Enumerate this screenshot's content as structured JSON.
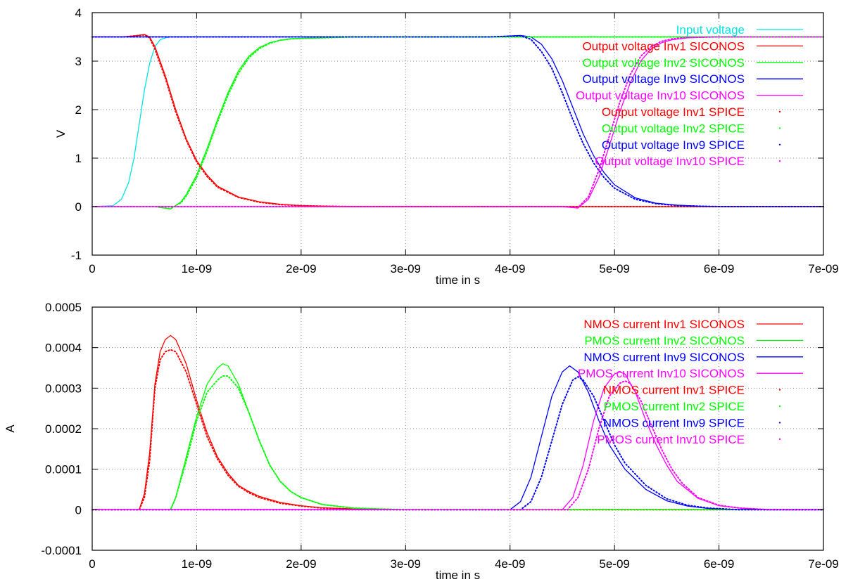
{
  "chart_data": [
    {
      "type": "line",
      "xlabel": "time in s",
      "ylabel": "V",
      "xlim": [
        0,
        7e-09
      ],
      "ylim": [
        -1,
        4
      ],
      "x_ticks": [
        "0",
        "1e-09",
        "2e-09",
        "3e-09",
        "4e-09",
        "5e-09",
        "6e-09",
        "7e-09"
      ],
      "y_ticks": [
        "-1",
        "0",
        "1",
        "2",
        "3",
        "4"
      ],
      "grid": true,
      "legend_position": "top-right",
      "series": [
        {
          "name": "Input voltage",
          "color": "#00e5e5",
          "style": "line",
          "x": [
            0,
            2e-10,
            2.8e-10,
            3.5e-10,
            4e-10,
            4.5e-10,
            5e-10,
            5.5e-10,
            6e-10,
            6.5e-10,
            7e-10,
            7.5e-10,
            8e-10,
            7e-09
          ],
          "y": [
            0,
            0.02,
            0.15,
            0.5,
            1.0,
            1.7,
            2.4,
            2.95,
            3.3,
            3.44,
            3.48,
            3.5,
            3.5,
            3.5
          ]
        },
        {
          "name": "Output voltage Inv1 SICONOS",
          "color": "#ff0000",
          "style": "line",
          "x": [
            0,
            3e-10,
            4e-10,
            5e-10,
            5.5e-10,
            6e-10,
            7e-10,
            8e-10,
            9e-10,
            1e-09,
            1.1e-09,
            1.2e-09,
            1.4e-09,
            1.6e-09,
            1.8e-09,
            2e-09,
            2.2e-09,
            2.5e-09,
            3e-09,
            7e-09
          ],
          "y": [
            3.5,
            3.5,
            3.52,
            3.55,
            3.5,
            3.3,
            2.7,
            2.0,
            1.4,
            0.95,
            0.65,
            0.42,
            0.2,
            0.1,
            0.05,
            0.02,
            0.01,
            0,
            0,
            0
          ]
        },
        {
          "name": "Output voltage Inv2 SICONOS",
          "color": "#00ff00",
          "style": "line",
          "x": [
            0,
            6e-10,
            7.5e-10,
            8.5e-10,
            9e-10,
            1e-09,
            1.1e-09,
            1.2e-09,
            1.3e-09,
            1.4e-09,
            1.5e-09,
            1.6e-09,
            1.7e-09,
            1.8e-09,
            1.9e-09,
            2e-09,
            2.2e-09,
            2.5e-09,
            7e-09
          ],
          "y": [
            0,
            0,
            -0.05,
            0.1,
            0.25,
            0.65,
            1.2,
            1.8,
            2.35,
            2.8,
            3.1,
            3.28,
            3.38,
            3.43,
            3.46,
            3.47,
            3.48,
            3.5,
            3.5
          ]
        },
        {
          "name": "Output voltage Inv9 SICONOS",
          "color": "#0000ff",
          "style": "line",
          "x": [
            0,
            3.8e-09,
            4.1e-09,
            4.2e-09,
            4.3e-09,
            4.4e-09,
            4.5e-09,
            4.6e-09,
            4.7e-09,
            4.8e-09,
            4.9e-09,
            5e-09,
            5.2e-09,
            5.4e-09,
            5.6e-09,
            5.8e-09,
            6e-09,
            6.5e-09,
            7e-09
          ],
          "y": [
            3.5,
            3.5,
            3.53,
            3.5,
            3.35,
            3.05,
            2.6,
            2.05,
            1.5,
            1.05,
            0.7,
            0.45,
            0.18,
            0.07,
            0.03,
            0.01,
            0,
            0,
            0
          ]
        },
        {
          "name": "Output voltage Inv10 SICONOS",
          "color": "#ff00ff",
          "style": "line",
          "x": [
            0,
            4.5e-09,
            4.65e-09,
            4.75e-09,
            4.85e-09,
            4.95e-09,
            5.05e-09,
            5.15e-09,
            5.25e-09,
            5.35e-09,
            5.45e-09,
            5.55e-09,
            5.7e-09,
            6e-09,
            7e-09
          ],
          "y": [
            0,
            0,
            -0.03,
            0.15,
            0.6,
            1.25,
            1.95,
            2.55,
            3.0,
            3.25,
            3.38,
            3.44,
            3.48,
            3.5,
            3.5
          ]
        },
        {
          "name": "Output voltage Inv1 SPICE",
          "color": "#ff0000",
          "style": "dots",
          "x": [
            0,
            3e-10,
            4e-10,
            5e-10,
            5.5e-10,
            6e-10,
            7e-10,
            8e-10,
            9e-10,
            1e-09,
            1.1e-09,
            1.2e-09,
            1.4e-09,
            1.6e-09,
            1.8e-09,
            2e-09,
            2.2e-09,
            2.5e-09,
            3e-09,
            7e-09
          ],
          "y": [
            3.5,
            3.5,
            3.52,
            3.54,
            3.48,
            3.25,
            2.65,
            1.95,
            1.37,
            0.92,
            0.62,
            0.4,
            0.19,
            0.09,
            0.04,
            0.02,
            0.01,
            0,
            0,
            0
          ]
        },
        {
          "name": "Output voltage Inv2 SPICE",
          "color": "#00ff00",
          "style": "dots",
          "x": [
            0,
            6e-10,
            7.5e-10,
            8.5e-10,
            9e-10,
            1e-09,
            1.1e-09,
            1.2e-09,
            1.3e-09,
            1.4e-09,
            1.5e-09,
            1.6e-09,
            1.7e-09,
            1.8e-09,
            1.9e-09,
            2e-09,
            2.2e-09,
            2.5e-09,
            7e-09
          ],
          "y": [
            0,
            0,
            -0.04,
            0.08,
            0.22,
            0.6,
            1.15,
            1.75,
            2.3,
            2.75,
            3.07,
            3.26,
            3.37,
            3.43,
            3.46,
            3.47,
            3.48,
            3.5,
            3.5
          ]
        },
        {
          "name": "Output voltage Inv9 SPICE",
          "color": "#0000ff",
          "style": "dots",
          "x": [
            0,
            3.8e-09,
            4.1e-09,
            4.2e-09,
            4.3e-09,
            4.4e-09,
            4.5e-09,
            4.6e-09,
            4.7e-09,
            4.8e-09,
            4.9e-09,
            5e-09,
            5.2e-09,
            5.4e-09,
            5.6e-09,
            5.8e-09,
            6e-09,
            6.5e-09,
            7e-09
          ],
          "y": [
            3.5,
            3.5,
            3.52,
            3.45,
            3.2,
            2.85,
            2.35,
            1.8,
            1.3,
            0.9,
            0.6,
            0.38,
            0.15,
            0.06,
            0.02,
            0.01,
            0,
            0,
            0
          ]
        },
        {
          "name": "Output voltage Inv10 SPICE",
          "color": "#ff00ff",
          "style": "dots",
          "x": [
            0,
            4.5e-09,
            4.65e-09,
            4.75e-09,
            4.85e-09,
            4.95e-09,
            5.05e-09,
            5.15e-09,
            5.25e-09,
            5.35e-09,
            5.45e-09,
            5.55e-09,
            5.7e-09,
            6e-09,
            7e-09
          ],
          "y": [
            0,
            0,
            -0.02,
            0.2,
            0.75,
            1.45,
            2.15,
            2.72,
            3.1,
            3.3,
            3.41,
            3.46,
            3.49,
            3.5,
            3.5
          ]
        }
      ]
    },
    {
      "type": "line",
      "xlabel": "time in s",
      "ylabel": "A",
      "xlim": [
        0,
        7e-09
      ],
      "ylim": [
        -0.0001,
        0.0005
      ],
      "x_ticks": [
        "0",
        "1e-09",
        "2e-09",
        "3e-09",
        "4e-09",
        "5e-09",
        "6e-09",
        "7e-09"
      ],
      "y_ticks": [
        "-0.0001",
        "0",
        "0.0001",
        "0.0002",
        "0.0003",
        "0.0004",
        "0.0005"
      ],
      "grid": true,
      "legend_position": "top-right",
      "series": [
        {
          "name": "NMOS current Inv1 SICONOS",
          "color": "#ff0000",
          "style": "line",
          "x": [
            0,
            4.5e-10,
            5e-10,
            5.5e-10,
            6e-10,
            6.5e-10,
            7e-10,
            7.5e-10,
            8e-10,
            9e-10,
            1e-09,
            1.1e-09,
            1.2e-09,
            1.3e-09,
            1.4e-09,
            1.5e-09,
            1.6e-09,
            1.8e-09,
            2e-09,
            2.2e-09,
            2.5e-09,
            3e-09,
            7e-09
          ],
          "y": [
            0,
            0,
            4e-05,
            0.00014,
            0.00031,
            0.00039,
            0.00042,
            0.00043,
            0.00042,
            0.00036,
            0.00027,
            0.00019,
            0.00013,
            9e-05,
            6e-05,
            4.5e-05,
            3.3e-05,
            1.8e-05,
            1e-05,
            5e-06,
            2e-06,
            0,
            0
          ]
        },
        {
          "name": "PMOS current Inv2 SICONOS",
          "color": "#00ff00",
          "style": "line",
          "x": [
            0,
            7.5e-10,
            8e-10,
            9e-10,
            1e-09,
            1.1e-09,
            1.2e-09,
            1.25e-09,
            1.3e-09,
            1.4e-09,
            1.5e-09,
            1.6e-09,
            1.7e-09,
            1.8e-09,
            1.9e-09,
            2e-09,
            2.2e-09,
            2.5e-09,
            3e-09,
            7e-09
          ],
          "y": [
            0,
            0,
            3e-05,
            0.00013,
            0.00023,
            0.00031,
            0.00035,
            0.00036,
            0.000355,
            0.00031,
            0.00024,
            0.00017,
            0.00011,
            7e-05,
            4.5e-05,
            3e-05,
            1.3e-05,
            4e-06,
            0,
            0
          ]
        },
        {
          "name": "NMOS current Inv9 SICONOS",
          "color": "#0000ff",
          "style": "line",
          "x": [
            0,
            4e-09,
            4.1e-09,
            4.2e-09,
            4.3e-09,
            4.4e-09,
            4.5e-09,
            4.57e-09,
            4.65e-09,
            4.75e-09,
            4.85e-09,
            4.95e-09,
            5.1e-09,
            5.3e-09,
            5.5e-09,
            5.7e-09,
            5.9e-09,
            6.2e-09,
            7e-09
          ],
          "y": [
            0,
            0,
            2e-05,
            8e-05,
            0.00018,
            0.00028,
            0.00034,
            0.000355,
            0.00034,
            0.00029,
            0.00022,
            0.00016,
            0.0001,
            5e-05,
            2.2e-05,
            9e-06,
            3e-06,
            0,
            0
          ]
        },
        {
          "name": "PMOS current Inv10 SICONOS",
          "color": "#ff00ff",
          "style": "line",
          "x": [
            0,
            4.5e-09,
            4.6e-09,
            4.7e-09,
            4.8e-09,
            4.9e-09,
            5e-09,
            5.05e-09,
            5.1e-09,
            5.2e-09,
            5.3e-09,
            5.4e-09,
            5.5e-09,
            5.6e-09,
            5.8e-09,
            6e-09,
            6.2e-09,
            6.5e-09,
            7e-09
          ],
          "y": [
            0,
            0,
            3e-05,
            0.00011,
            0.00022,
            0.0003,
            0.000335,
            0.00034,
            0.000335,
            0.00029,
            0.00022,
            0.00016,
            0.00011,
            7e-05,
            2.8e-05,
            1e-05,
            4e-06,
            0,
            0
          ]
        },
        {
          "name": "NMOS current Inv1 SPICE",
          "color": "#ff0000",
          "style": "dots",
          "x": [
            0,
            4.5e-10,
            5e-10,
            5.5e-10,
            6e-10,
            6.5e-10,
            7e-10,
            7.5e-10,
            8e-10,
            9e-10,
            1e-09,
            1.1e-09,
            1.2e-09,
            1.3e-09,
            1.4e-09,
            1.5e-09,
            1.6e-09,
            1.8e-09,
            2e-09,
            2.2e-09,
            2.5e-09,
            3e-09,
            7e-09
          ],
          "y": [
            0,
            0,
            3e-05,
            0.00012,
            0.0003,
            0.00037,
            0.00039,
            0.000395,
            0.00039,
            0.00034,
            0.00026,
            0.00018,
            0.000125,
            8.5e-05,
            5.8e-05,
            4.2e-05,
            3e-05,
            1.6e-05,
            9e-06,
            4e-06,
            2e-06,
            0,
            0
          ]
        },
        {
          "name": "PMOS current Inv2 SPICE",
          "color": "#00ff00",
          "style": "dots",
          "x": [
            0,
            7.5e-10,
            8e-10,
            9e-10,
            1e-09,
            1.1e-09,
            1.2e-09,
            1.25e-09,
            1.3e-09,
            1.4e-09,
            1.5e-09,
            1.6e-09,
            1.7e-09,
            1.8e-09,
            1.9e-09,
            2e-09,
            2.2e-09,
            2.5e-09,
            3e-09,
            7e-09
          ],
          "y": [
            0,
            0,
            3e-05,
            0.00012,
            0.00022,
            0.00029,
            0.00032,
            0.00033,
            0.00033,
            0.0003,
            0.00024,
            0.00017,
            0.00011,
            7e-05,
            4.5e-05,
            3e-05,
            1.3e-05,
            4e-06,
            0,
            0
          ]
        },
        {
          "name": "NMOS current Inv9 SPICE",
          "color": "#0000ff",
          "style": "dots",
          "x": [
            0,
            4.1e-09,
            4.2e-09,
            4.3e-09,
            4.4e-09,
            4.5e-09,
            4.6e-09,
            4.65e-09,
            4.7e-09,
            4.8e-09,
            4.9e-09,
            5e-09,
            5.1e-09,
            5.3e-09,
            5.5e-09,
            5.7e-09,
            5.9e-09,
            6.2e-09,
            7e-09
          ],
          "y": [
            0,
            0,
            2e-05,
            8e-05,
            0.00017,
            0.00026,
            0.00032,
            0.000328,
            0.00032,
            0.00028,
            0.00022,
            0.00016,
            0.000115,
            6e-05,
            2.7e-05,
            1.1e-05,
            4e-06,
            0,
            0
          ]
        },
        {
          "name": "PMOS current Inv10 SPICE",
          "color": "#ff00ff",
          "style": "dots",
          "x": [
            0,
            4.55e-09,
            4.65e-09,
            4.75e-09,
            4.85e-09,
            4.95e-09,
            5.05e-09,
            5.1e-09,
            5.15e-09,
            5.25e-09,
            5.35e-09,
            5.45e-09,
            5.55e-09,
            5.65e-09,
            5.8e-09,
            6e-09,
            6.2e-09,
            6.5e-09,
            7e-09
          ],
          "y": [
            0,
            0,
            3e-05,
            0.0001,
            0.0002,
            0.00028,
            0.000312,
            0.000318,
            0.000312,
            0.00027,
            0.00021,
            0.00015,
            0.0001,
            6.5e-05,
            3e-05,
            1.1e-05,
            4e-06,
            0,
            0
          ]
        }
      ]
    }
  ]
}
